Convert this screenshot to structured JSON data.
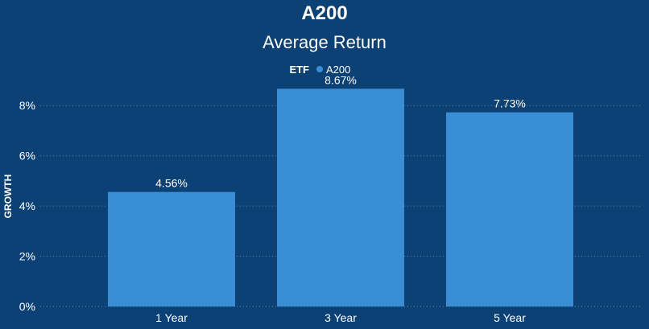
{
  "colors": {
    "background": "#0b4174",
    "bar": "#3a8ed6",
    "text": "#ffffff",
    "gridline": "#5d86b0"
  },
  "chart_data": {
    "type": "bar",
    "title": "A200",
    "subtitle": "Average Return",
    "xlabel": "",
    "ylabel": "GROWTH",
    "legend": {
      "title": "ETF",
      "placement": "top-center",
      "entries": [
        "A200"
      ]
    },
    "categories": [
      "1 Year",
      "3 Year",
      "5 Year"
    ],
    "series": [
      {
        "name": "A200",
        "values": [
          4.56,
          8.67,
          7.73
        ],
        "data_labels": [
          "4.56%",
          "8.67%",
          "7.73%"
        ]
      }
    ],
    "ylim": [
      0,
      9
    ],
    "y_ticks": [
      0,
      2,
      4,
      6,
      8
    ],
    "y_tick_labels": [
      "0%",
      "2%",
      "4%",
      "6%",
      "8%"
    ],
    "grid": "horizontal-dotted"
  }
}
